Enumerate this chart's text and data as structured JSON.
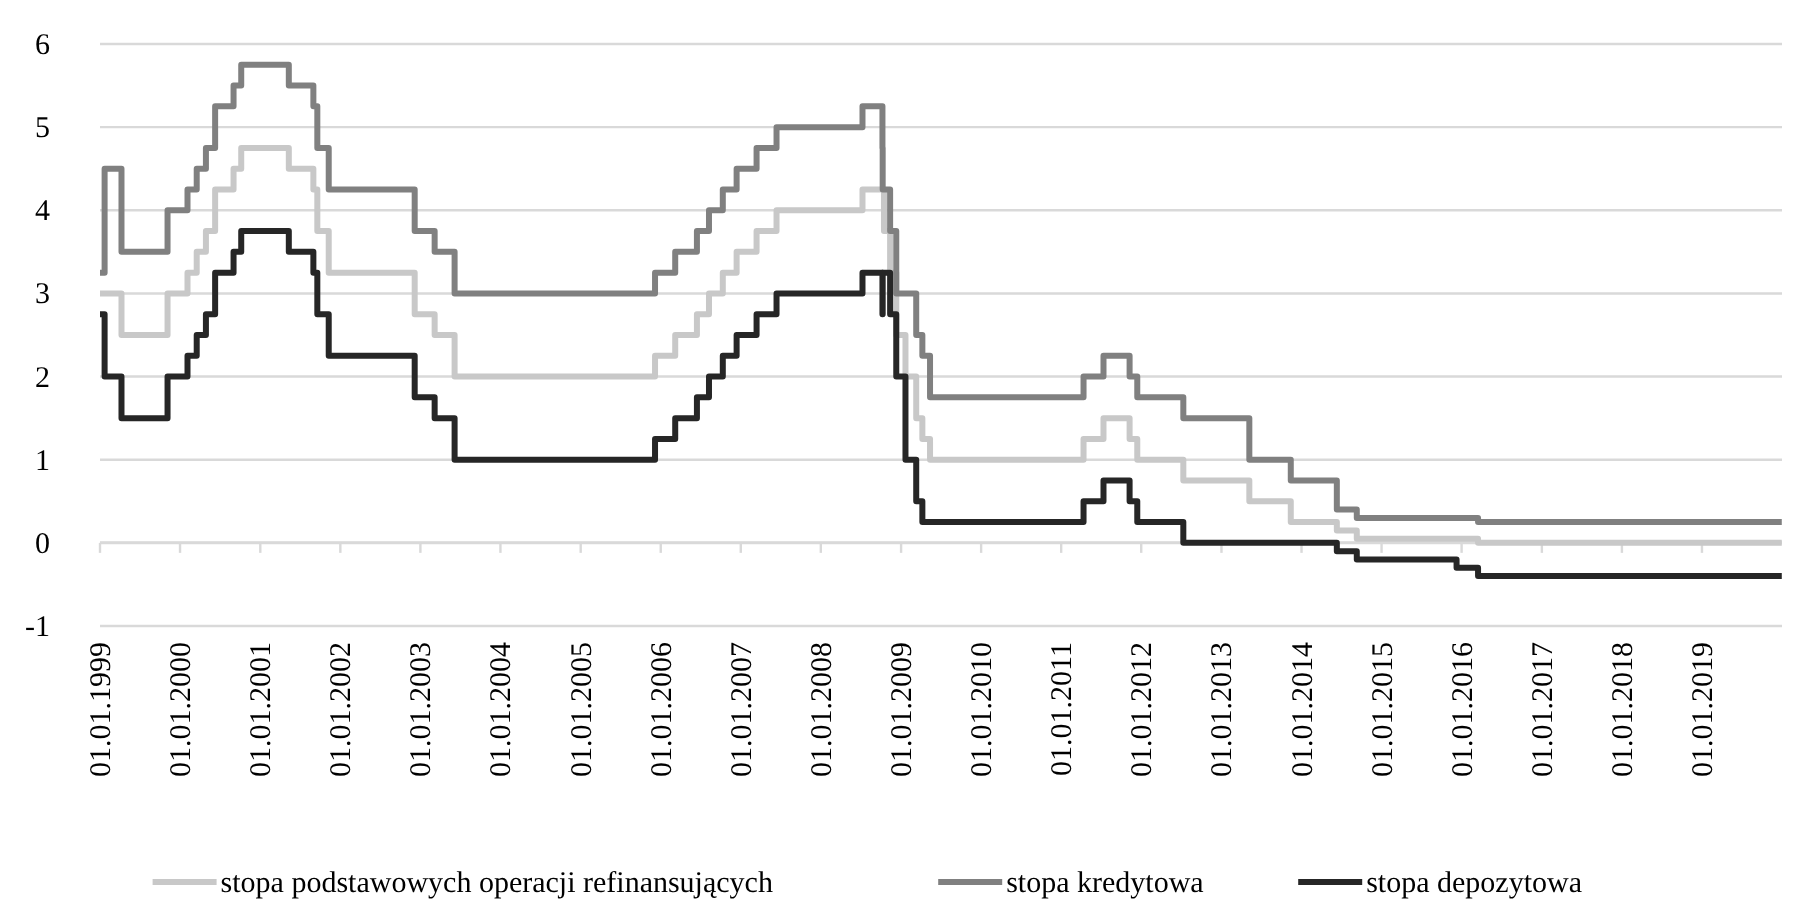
{
  "chart_data": {
    "type": "step",
    "xlim": [
      "1999-01-01",
      "2020-01-01"
    ],
    "xticks": [
      {
        "value": "1999-01-01",
        "label": "01.01.1999"
      },
      {
        "value": "2000-01-01",
        "label": "01.01.2000"
      },
      {
        "value": "2001-01-01",
        "label": "01.01.2001"
      },
      {
        "value": "2002-01-01",
        "label": "01.01.2002"
      },
      {
        "value": "2003-01-01",
        "label": "01.01.2003"
      },
      {
        "value": "2004-01-01",
        "label": "01.01.2004"
      },
      {
        "value": "2005-01-01",
        "label": "01.01.2005"
      },
      {
        "value": "2006-01-01",
        "label": "01.01.2006"
      },
      {
        "value": "2007-01-01",
        "label": "01.01.2007"
      },
      {
        "value": "2008-01-01",
        "label": "01.01.2008"
      },
      {
        "value": "2009-01-01",
        "label": "01.01.2009"
      },
      {
        "value": "2010-01-01",
        "label": "01.01.2010"
      },
      {
        "value": "2011-01-01",
        "label": "01.01.2011"
      },
      {
        "value": "2012-01-01",
        "label": "01.01.2012"
      },
      {
        "value": "2013-01-01",
        "label": "01.01.2013"
      },
      {
        "value": "2014-01-01",
        "label": "01.01.2014"
      },
      {
        "value": "2015-01-01",
        "label": "01.01.2015"
      },
      {
        "value": "2016-01-01",
        "label": "01.01.2016"
      },
      {
        "value": "2017-01-01",
        "label": "01.01.2017"
      },
      {
        "value": "2018-01-01",
        "label": "01.01.2018"
      },
      {
        "value": "2019-01-01",
        "label": "01.01.2019"
      }
    ],
    "ylim": [
      -1,
      6
    ],
    "yticks": [
      -1,
      0,
      1,
      2,
      3,
      4,
      5,
      6
    ],
    "grid": "y",
    "legend": "bottom",
    "marker": "none",
    "line_style": "solid",
    "series": [
      {
        "name": "stopa podstawowych operacji refinansujących",
        "color": "#c8c8c8",
        "x": [
          "1999-01-01",
          "1999-04-09",
          "1999-11-05",
          "2000-02-04",
          "2000-03-17",
          "2000-04-28",
          "2000-06-09",
          "2000-09-01",
          "2000-10-06",
          "2001-05-11",
          "2001-08-31",
          "2001-09-18",
          "2001-11-09",
          "2002-12-06",
          "2003-03-07",
          "2003-06-06",
          "2005-12-06",
          "2006-03-08",
          "2006-06-15",
          "2006-08-09",
          "2006-10-11",
          "2006-12-13",
          "2007-03-14",
          "2007-06-13",
          "2008-07-09",
          "2008-10-15",
          "2008-11-12",
          "2008-12-10",
          "2009-01-21",
          "2009-03-11",
          "2009-04-08",
          "2009-05-13",
          "2011-04-13",
          "2011-07-13",
          "2011-11-09",
          "2011-12-14",
          "2012-07-11",
          "2013-05-08",
          "2013-11-13",
          "2014-06-11",
          "2014-09-10",
          "2016-03-16",
          "2019-12-31"
        ],
        "values": [
          3.0,
          2.5,
          3.0,
          3.25,
          3.5,
          3.75,
          4.25,
          4.5,
          4.75,
          4.5,
          4.25,
          3.75,
          3.25,
          2.75,
          2.5,
          2.0,
          2.25,
          2.5,
          2.75,
          3.0,
          3.25,
          3.5,
          3.75,
          4.0,
          4.25,
          3.75,
          3.25,
          2.5,
          2.0,
          1.5,
          1.25,
          1.0,
          1.25,
          1.5,
          1.25,
          1.0,
          0.75,
          0.5,
          0.25,
          0.15,
          0.05,
          0.0,
          0.0
        ]
      },
      {
        "name": "stopa kredytowa",
        "color": "#808080",
        "x": [
          "1999-01-01",
          "1999-01-22",
          "1999-04-09",
          "1999-11-05",
          "2000-02-04",
          "2000-03-17",
          "2000-04-28",
          "2000-06-09",
          "2000-09-01",
          "2000-10-06",
          "2001-05-11",
          "2001-08-31",
          "2001-09-18",
          "2001-11-09",
          "2002-12-06",
          "2003-03-07",
          "2003-06-06",
          "2005-12-06",
          "2006-03-08",
          "2006-06-15",
          "2006-08-09",
          "2006-10-11",
          "2006-12-13",
          "2007-03-14",
          "2007-06-13",
          "2008-07-09",
          "2008-10-08",
          "2008-10-09",
          "2008-11-12",
          "2008-12-10",
          "2009-03-11",
          "2009-04-08",
          "2009-05-13",
          "2011-04-13",
          "2011-07-13",
          "2011-11-09",
          "2011-12-14",
          "2012-07-11",
          "2013-05-08",
          "2013-11-13",
          "2014-06-11",
          "2014-09-10",
          "2016-03-16",
          "2019-12-31"
        ],
        "values": [
          3.25,
          4.5,
          3.5,
          4.0,
          4.25,
          4.5,
          4.75,
          5.25,
          5.5,
          5.75,
          5.5,
          5.25,
          4.75,
          4.25,
          3.75,
          3.5,
          3.0,
          3.25,
          3.5,
          3.75,
          4.0,
          4.25,
          4.5,
          4.75,
          5.0,
          5.25,
          4.75,
          4.25,
          3.75,
          3.0,
          2.5,
          2.25,
          1.75,
          2.0,
          2.25,
          2.0,
          1.75,
          1.5,
          1.0,
          0.75,
          0.4,
          0.3,
          0.25,
          0.25
        ]
      },
      {
        "name": "stopa depozytowa",
        "color": "#262626",
        "x": [
          "1999-01-01",
          "1999-01-22",
          "1999-04-09",
          "1999-11-05",
          "2000-02-04",
          "2000-03-17",
          "2000-04-28",
          "2000-06-09",
          "2000-09-01",
          "2000-10-06",
          "2001-05-11",
          "2001-08-31",
          "2001-09-18",
          "2001-11-09",
          "2002-12-06",
          "2003-03-07",
          "2003-06-06",
          "2005-12-06",
          "2006-03-08",
          "2006-06-15",
          "2006-08-09",
          "2006-10-11",
          "2006-12-13",
          "2007-03-14",
          "2007-06-13",
          "2008-07-09",
          "2008-10-08",
          "2008-10-09",
          "2008-11-12",
          "2008-12-10",
          "2009-01-21",
          "2009-03-11",
          "2009-04-08",
          "2011-04-13",
          "2011-07-13",
          "2011-11-09",
          "2011-12-14",
          "2012-07-11",
          "2014-06-11",
          "2014-09-10",
          "2015-12-09",
          "2016-03-16",
          "2019-12-31"
        ],
        "values": [
          2.75,
          2.0,
          1.5,
          2.0,
          2.25,
          2.5,
          2.75,
          3.25,
          3.5,
          3.75,
          3.5,
          3.25,
          2.75,
          2.25,
          1.75,
          1.5,
          1.0,
          1.25,
          1.5,
          1.75,
          2.0,
          2.25,
          2.5,
          2.75,
          3.0,
          3.25,
          2.75,
          3.25,
          2.75,
          2.0,
          1.0,
          0.5,
          0.25,
          0.5,
          0.75,
          0.5,
          0.25,
          0.0,
          -0.1,
          -0.2,
          -0.3,
          -0.4,
          -0.4
        ]
      }
    ]
  }
}
